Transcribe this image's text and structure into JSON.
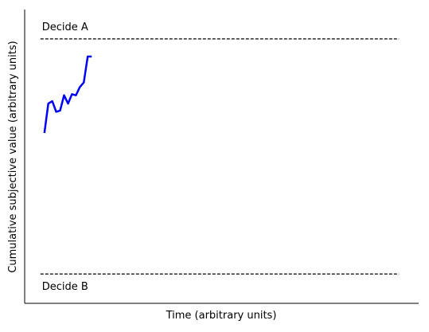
{
  "chart_data": {
    "type": "line",
    "title": "",
    "xlabel": "Time (arbitrary units)",
    "ylabel": "Cumulative subjective value (arbitrary units)",
    "xlim": [
      0,
      100
    ],
    "ylim": [
      -1.25,
      1.25
    ],
    "grid": false,
    "boundaries": [
      {
        "label": "Decide A",
        "y": 1.0,
        "style": "dashed",
        "color": "#000000"
      },
      {
        "label": "Decide B",
        "y": -1.0,
        "style": "dashed",
        "color": "#000000"
      }
    ],
    "series": [
      {
        "color": "#0000ff",
        "x": [
          5,
          6,
          7,
          8,
          9,
          10,
          11,
          12,
          13,
          14,
          15,
          16,
          17
        ],
        "y": [
          0.2,
          0.45,
          0.47,
          0.38,
          0.39,
          0.52,
          0.45,
          0.53,
          0.52,
          0.59,
          0.63,
          0.85,
          0.85
        ]
      }
    ]
  }
}
